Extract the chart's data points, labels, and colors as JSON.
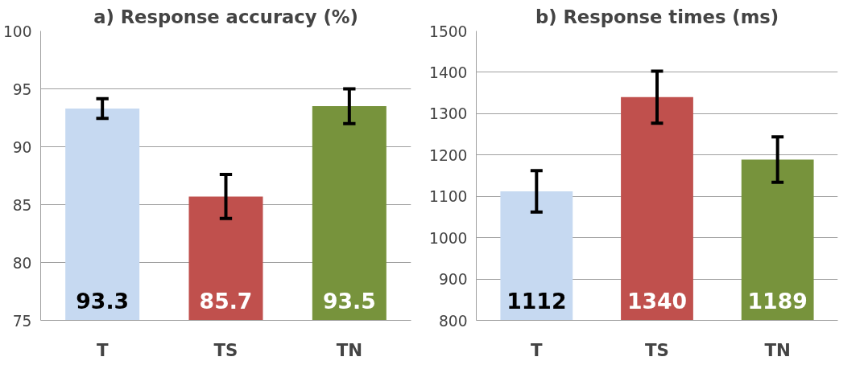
{
  "chart_data": [
    {
      "type": "bar",
      "title": "a) Response accuracy (%)",
      "categories": [
        "T",
        "TS",
        "TN"
      ],
      "values": [
        93.3,
        85.7,
        93.5
      ],
      "colors": [
        "#c6d9f1",
        "#c0504d",
        "#77933c"
      ],
      "errors": [
        0.85,
        1.9,
        1.5
      ],
      "ylim": [
        75,
        100
      ],
      "yticks": [
        75,
        80,
        85,
        90,
        95,
        100
      ],
      "grid": "y",
      "data_labels": true
    },
    {
      "type": "bar",
      "title": "b) Response times (ms)",
      "categories": [
        "T",
        "TS",
        "TN"
      ],
      "values": [
        1112,
        1340,
        1189
      ],
      "colors": [
        "#c6d9f1",
        "#c0504d",
        "#77933c"
      ],
      "errors": [
        50,
        63,
        55
      ],
      "ylim": [
        800,
        1500
      ],
      "yticks": [
        800,
        900,
        1000,
        1100,
        1200,
        1300,
        1400,
        1500
      ],
      "grid": "y",
      "data_labels": true
    }
  ]
}
